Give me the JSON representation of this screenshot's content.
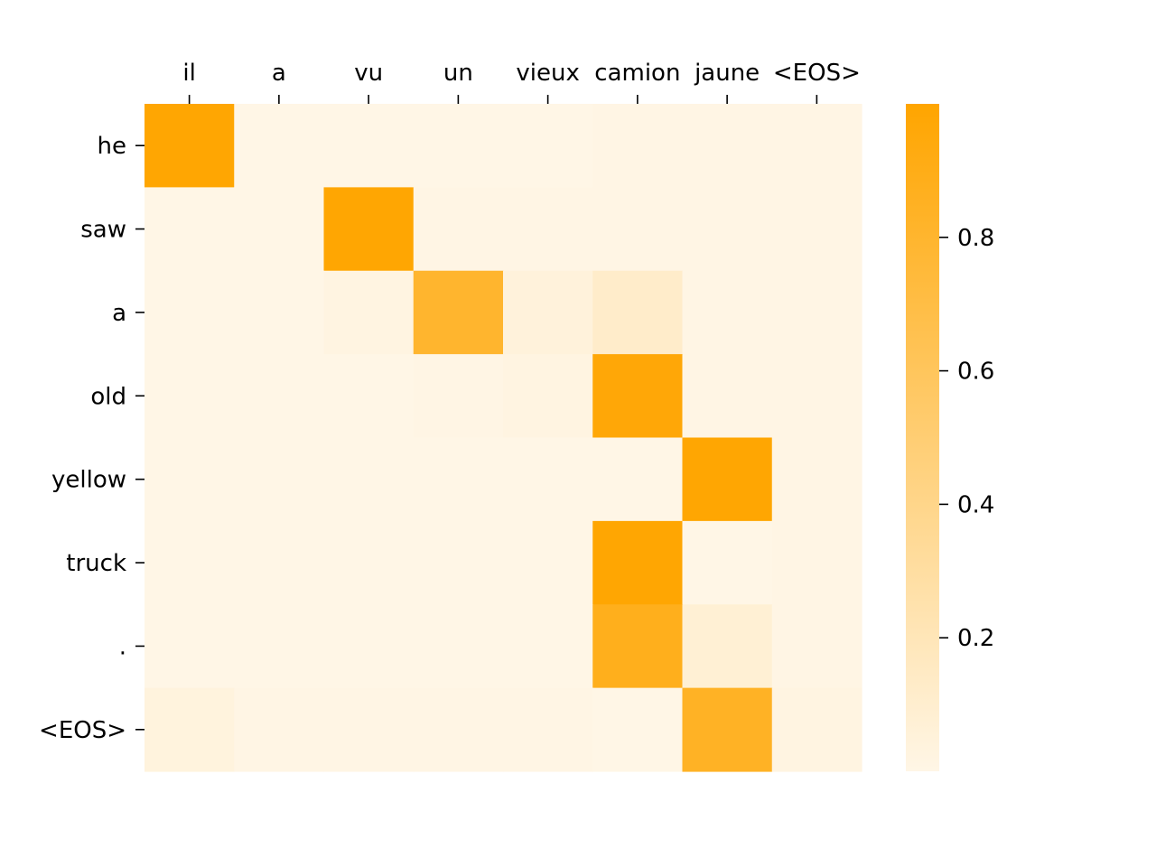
{
  "chart_data": {
    "type": "heatmap",
    "title": "",
    "xlabel": "",
    "ylabel": "",
    "x_categories": [
      "il",
      "a",
      "vu",
      "un",
      "vieux",
      "camion",
      "jaune",
      "<EOS>"
    ],
    "y_categories": [
      "he",
      "saw",
      "a",
      "old",
      "yellow",
      "truck",
      ".",
      "<EOS>"
    ],
    "values": [
      [
        0.99,
        0.0,
        0.0,
        0.0,
        0.0,
        0.01,
        0.01,
        0.01
      ],
      [
        0.0,
        0.0,
        0.99,
        0.01,
        0.01,
        0.01,
        0.01,
        0.01
      ],
      [
        0.0,
        0.0,
        0.02,
        0.8,
        0.05,
        0.12,
        0.01,
        0.01
      ],
      [
        0.0,
        0.0,
        0.0,
        0.01,
        0.02,
        0.97,
        0.01,
        0.01
      ],
      [
        0.0,
        0.0,
        0.0,
        0.0,
        0.0,
        0.0,
        0.99,
        0.01
      ],
      [
        0.0,
        0.0,
        0.0,
        0.0,
        0.0,
        0.99,
        0.0,
        0.01
      ],
      [
        0.0,
        0.0,
        0.0,
        0.0,
        0.0,
        0.88,
        0.08,
        0.01
      ],
      [
        0.04,
        0.01,
        0.01,
        0.01,
        0.01,
        0.0,
        0.84,
        0.02
      ]
    ],
    "colorbar": {
      "min": 0.0,
      "max": 1.0,
      "ticks": [
        0.2,
        0.4,
        0.6,
        0.8
      ],
      "tick_labels": [
        "0.2",
        "0.4",
        "0.6",
        "0.8"
      ],
      "color_low": "#fff6e6",
      "color_high": "#ffa500"
    },
    "x_axis_position": "top",
    "grid": false,
    "legend": "none"
  }
}
